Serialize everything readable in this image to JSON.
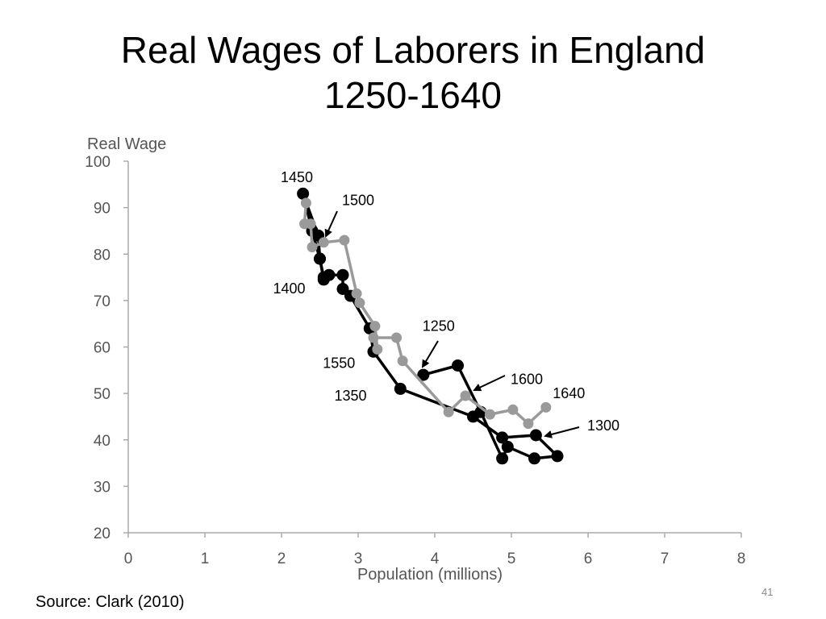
{
  "slide": {
    "title_line1": "Real Wages of Laborers in England",
    "title_line2": "1250-1640",
    "source": "Source: Clark (2010)",
    "page_number": "41"
  },
  "chart_data": {
    "type": "line",
    "title": "Real Wages of Laborers in England 1250-1640",
    "xlabel": "Population (millions)",
    "ylabel": "Real Wage",
    "xlim": [
      0,
      8
    ],
    "ylim": [
      20,
      100
    ],
    "xticks": [
      0,
      1,
      2,
      3,
      4,
      5,
      6,
      7,
      8
    ],
    "yticks": [
      20,
      30,
      40,
      50,
      60,
      70,
      80,
      90,
      100
    ],
    "grid": false,
    "series": [
      {
        "color": "#000000",
        "points": [
          [
            3.85,
            54
          ],
          [
            4.3,
            56
          ],
          [
            4.6,
            46
          ],
          [
            4.88,
            36
          ],
          [
            4.95,
            38.5
          ],
          [
            5.3,
            36
          ],
          [
            5.6,
            36.5
          ],
          [
            5.32,
            41
          ],
          [
            4.88,
            40.5
          ],
          [
            4.5,
            45
          ],
          [
            3.55,
            51
          ],
          [
            3.2,
            59
          ],
          [
            3.15,
            64
          ],
          [
            2.9,
            71
          ],
          [
            2.8,
            72.5
          ],
          [
            2.8,
            75.5
          ],
          [
            2.62,
            75.5
          ],
          [
            2.55,
            74.5
          ],
          [
            2.5,
            79
          ],
          [
            2.48,
            84
          ],
          [
            2.28,
            93
          ],
          [
            2.4,
            85
          ],
          [
            2.5,
            79
          ],
          [
            2.55,
            75
          ]
        ]
      },
      {
        "color": "#9a9a9a",
        "points": [
          [
            2.32,
            91
          ],
          [
            2.3,
            86.5
          ],
          [
            2.38,
            86.5
          ],
          [
            2.4,
            81.5
          ],
          [
            2.55,
            82.5
          ],
          [
            2.82,
            83
          ],
          [
            2.98,
            71.5
          ],
          [
            3.02,
            69.5
          ],
          [
            3.22,
            64.5
          ],
          [
            3.25,
            59.5
          ],
          [
            3.2,
            62
          ],
          [
            3.5,
            62
          ],
          [
            3.58,
            57
          ],
          [
            4.18,
            46
          ],
          [
            4.4,
            49.5
          ],
          [
            4.72,
            45.5
          ],
          [
            5.02,
            46.5
          ],
          [
            5.22,
            43.5
          ],
          [
            5.45,
            47
          ]
        ]
      }
    ],
    "annotations": [
      {
        "text": "1450",
        "x": 2.2,
        "y": 95.5
      },
      {
        "text": "1500",
        "x": 3.0,
        "y": 90.5
      },
      {
        "text": "1400",
        "x": 2.1,
        "y": 71.5
      },
      {
        "text": "1250",
        "x": 4.05,
        "y": 63.5
      },
      {
        "text": "1550",
        "x": 2.75,
        "y": 55.5
      },
      {
        "text": "1600",
        "x": 5.2,
        "y": 52
      },
      {
        "text": "1350",
        "x": 2.9,
        "y": 48.5
      },
      {
        "text": "1640",
        "x": 5.75,
        "y": 49
      },
      {
        "text": "1300",
        "x": 6.2,
        "y": 42
      }
    ]
  }
}
